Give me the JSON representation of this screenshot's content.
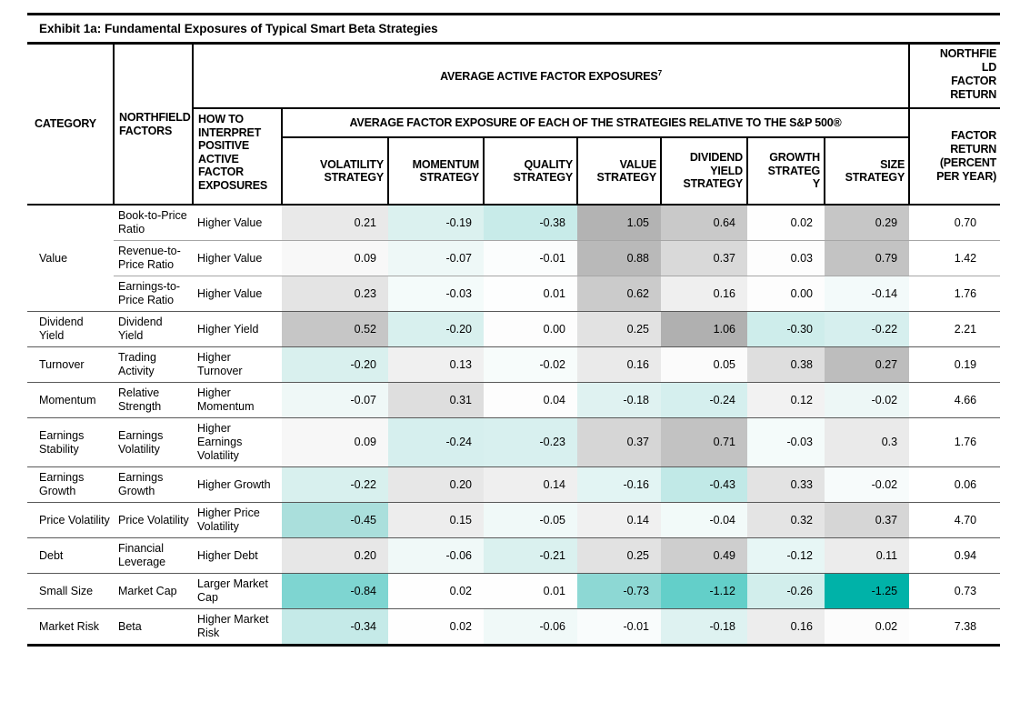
{
  "title": "Exhibit 1a: Fundamental Exposures of Typical Smart Beta Strategies",
  "header": {
    "category": "CATEGORY",
    "factors": "NORTHFIELD FACTORS",
    "interpret": "HOW TO INTERPRET POSITIVE ACTIVE FACTOR EXPOSURES",
    "exposures_title": "AVERAGE ACTIVE FACTOR EXPOSURES",
    "exposures_footnote": "7",
    "relative_title": "AVERAGE FACTOR EXPOSURE OF EACH OF THE STRATEGIES RELATIVE TO THE S&P 500®",
    "northfield_return": "NORTHFIELD FACTOR RETURN",
    "factor_return": "FACTOR RETURN (PERCENT PER YEAR)"
  },
  "colors_meta": {
    "positive_ramp_max": "#a6a6a6",
    "negative_ramp_max": "#00b2a8",
    "neutral": "#ffffff",
    "border_black": "#000000",
    "row_separator_group": "#595959",
    "row_separator_sub": "#a6a6a6"
  },
  "chart_data": {
    "type": "heatmap",
    "title": "Exhibit 1a: Fundamental Exposures of Typical Smart Beta Strategies",
    "columns": [
      "VOLATILITY STRATEGY",
      "MOMENTUM STRATEGY",
      "QUALITY STRATEGY",
      "VALUE STRATEGY",
      "DIVIDEND YIELD STRATEGY",
      "GROWTH STRATEGY",
      "SIZE STRATEGY"
    ],
    "return_column": "FACTOR RETURN (PERCENT PER YEAR)",
    "legend": "Gray shading = positive active exposure (darker = larger); teal shading = negative active exposure (darker = more negative)",
    "rows": [
      {
        "category": "Value",
        "category_span": 3,
        "factor": "Book-to-Price Ratio",
        "interpret": "Higher Value",
        "values": [
          "0.21",
          "-0.19",
          "-0.38",
          "1.05",
          "0.64",
          "0.02",
          "0.29"
        ],
        "colors": [
          "#e9e9e9",
          "#dbf1ef",
          "#c8ebe9",
          "#b3b3b3",
          "#c9c9c9",
          "#fefefe",
          "#c6c6c6"
        ],
        "return": "0.70"
      },
      {
        "category": null,
        "factor": "Revenue-to-Price Ratio",
        "interpret": "Higher Value",
        "values": [
          "0.09",
          "-0.07",
          "-0.01",
          "0.88",
          "0.37",
          "0.03",
          "0.79"
        ],
        "colors": [
          "#f8f8f8",
          "#eef8f7",
          "#fbfdfd",
          "#b9b9b9",
          "#d9d9d9",
          "#fdfdfd",
          "#c3c3c3"
        ],
        "return": "1.42"
      },
      {
        "category": null,
        "factor": "Earnings-to-Price Ratio",
        "interpret": "Higher Value",
        "values": [
          "0.23",
          "-0.03",
          "0.01",
          "0.62",
          "0.16",
          "0.00",
          "-0.14"
        ],
        "colors": [
          "#e4e4e4",
          "#f4fbfa",
          "#fdfefe",
          "#cbcbcb",
          "#efefef",
          "#fdfdfd",
          "#f3fafa"
        ],
        "return": "1.76"
      },
      {
        "category": "Dividend Yield",
        "category_span": 1,
        "factor": "Dividend Yield",
        "interpret": "Higher Yield",
        "values": [
          "0.52",
          "-0.20",
          "0.00",
          "0.25",
          "1.06",
          "-0.30",
          "-0.22"
        ],
        "colors": [
          "#c6c6c6",
          "#d8f0ee",
          "#fdfdfd",
          "#e2e2e2",
          "#b0b0b0",
          "#ceedeb",
          "#d6efee"
        ],
        "return": "2.21"
      },
      {
        "category": "Turnover",
        "category_span": 1,
        "factor": "Trading Activity",
        "interpret": "Higher Turnover",
        "values": [
          "-0.20",
          "0.13",
          "-0.02",
          "0.16",
          "0.05",
          "0.38",
          "0.27"
        ],
        "colors": [
          "#d9f0ee",
          "#f0f0f0",
          "#f7fcfb",
          "#eaeaea",
          "#fbfbfb",
          "#dedede",
          "#bdbdbd"
        ],
        "return": "0.19"
      },
      {
        "category": "Momentum",
        "category_span": 1,
        "factor": "Relative Strength",
        "interpret": "Higher Momentum",
        "values": [
          "-0.07",
          "0.31",
          "0.04",
          "-0.18",
          "-0.24",
          "0.12",
          "-0.02"
        ],
        "colors": [
          "#eff8f7",
          "#dedede",
          "#fdfdfd",
          "#dff2f1",
          "#d5efee",
          "#f2f2f2",
          "#edf7f6"
        ],
        "return": "4.66"
      },
      {
        "category": "Earnings Stability",
        "category_span": 1,
        "factor": "Earnings Volatility",
        "interpret": "Higher Earnings Volatility",
        "values": [
          "0.09",
          "-0.24",
          "-0.23",
          "0.37",
          "0.71",
          "-0.03",
          "0.3"
        ],
        "colors": [
          "#f7f7f7",
          "#d6efee",
          "#d8f0ef",
          "#d6d6d6",
          "#c2c2c2",
          "#f4fbfa",
          "#eaeaea"
        ],
        "return": "1.76"
      },
      {
        "category": "Earnings Growth",
        "category_span": 1,
        "factor": "Earnings Growth",
        "interpret": "Higher Growth",
        "values": [
          "-0.22",
          "0.20",
          "0.14",
          "-0.16",
          "-0.43",
          "0.33",
          "-0.02"
        ],
        "colors": [
          "#d8f0ee",
          "#e7e7e7",
          "#efefef",
          "#e2f4f3",
          "#c1e9e7",
          "#e3e3e3",
          "#f7fbfb"
        ],
        "return": "0.06"
      },
      {
        "category": "Price Volatility",
        "category_span": 1,
        "factor": "Price Volatility",
        "interpret": "Higher Price Volatility",
        "values": [
          "-0.45",
          "0.15",
          "-0.05",
          "0.14",
          "-0.04",
          "0.32",
          "0.37"
        ],
        "colors": [
          "#aadfdc",
          "#ededed",
          "#f0f9f8",
          "#f0f0f0",
          "#f2faf9",
          "#e4e4e4",
          "#d6d6d6"
        ],
        "return": "4.70"
      },
      {
        "category": "Debt",
        "category_span": 1,
        "factor": "Financial Leverage",
        "interpret": "Higher Debt",
        "values": [
          "0.20",
          "-0.06",
          "-0.21",
          "0.25",
          "0.49",
          "-0.12",
          "0.11"
        ],
        "colors": [
          "#e7e7e7",
          "#f0f9f8",
          "#daf1ef",
          "#e2e2e2",
          "#cecece",
          "#e7f6f5",
          "#ececec"
        ],
        "return": "0.94"
      },
      {
        "category": "Small Size",
        "category_span": 1,
        "factor": "Market Cap",
        "interpret": "Larger Market Cap",
        "values": [
          "-0.84",
          "0.02",
          "0.01",
          "-0.73",
          "-1.12",
          "-0.26",
          "-1.25"
        ],
        "colors": [
          "#7ed5d1",
          "#fefefe",
          "#fefefe",
          "#8dd8d4",
          "#63cfc9",
          "#d2eeec",
          "#00b2a8"
        ],
        "return": "0.73"
      },
      {
        "category": "Market Risk",
        "category_span": 1,
        "factor": "Beta",
        "interpret": "Higher Market Risk",
        "values": [
          "-0.34",
          "0.02",
          "-0.06",
          "-0.01",
          "-0.18",
          "0.16",
          "0.02"
        ],
        "colors": [
          "#c5eae8",
          "#fefefe",
          "#f0f9f8",
          "#f9fcfc",
          "#def2f1",
          "#ededed",
          "#fcfcfc"
        ],
        "return": "7.38"
      }
    ]
  }
}
